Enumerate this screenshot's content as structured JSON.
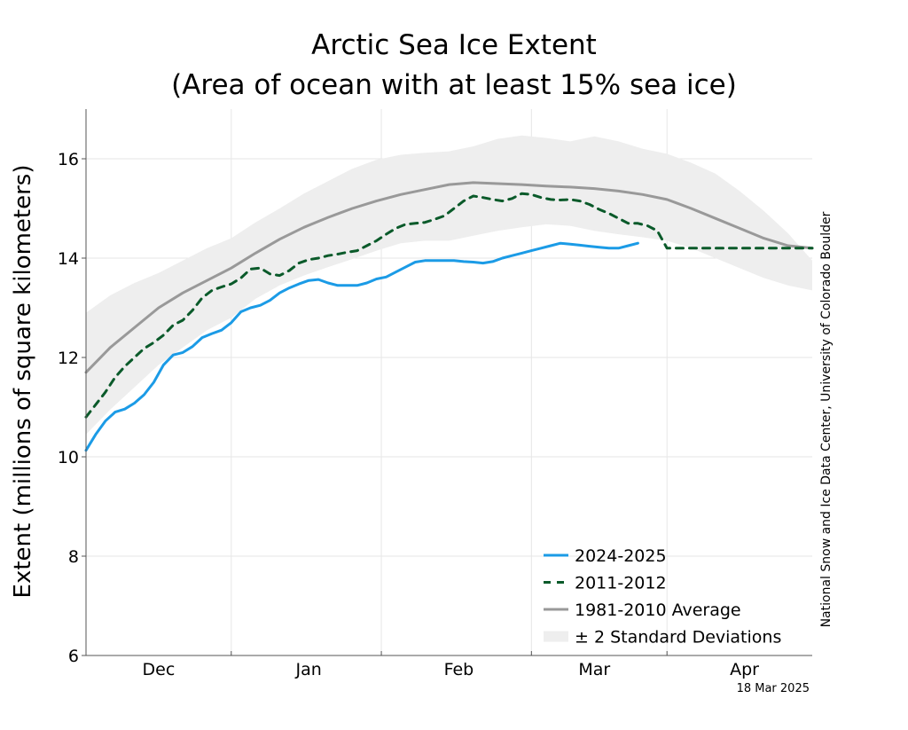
{
  "chart_data": {
    "type": "line",
    "title": [
      "Arctic Sea Ice Extent",
      "(Area of ocean with at least 15% sea ice)"
    ],
    "xlabel": "",
    "ylabel": "Extent (millions of square kilometers)",
    "ylim": [
      6,
      17
    ],
    "yticks": [
      6,
      8,
      10,
      12,
      14,
      16
    ],
    "x_tick_labels": [
      "Dec",
      "Jan",
      "Feb",
      "Mar",
      "Apr"
    ],
    "x_label_days": [
      15,
      46,
      77,
      105,
      136
    ],
    "x_separator_days": [
      30,
      61,
      92,
      120
    ],
    "xlim_days": [
      0,
      150
    ],
    "credit": "National Snow and Ice Data Center, University of Colorado Boulder",
    "date_stamp": "18 Mar 2025",
    "legend_position": "bottom-right",
    "grid": true,
    "colors": {
      "series_2024_2025": "#1b9be6",
      "series_2011_2012": "#0a5a2a",
      "average": "#999999",
      "std_band": "#eeeeee"
    },
    "band": {
      "name": "± 2 Standard Deviations",
      "x": [
        0,
        5,
        10,
        15,
        20,
        25,
        30,
        35,
        40,
        45,
        50,
        55,
        60,
        65,
        70,
        75,
        80,
        85,
        90,
        95,
        100,
        105,
        110,
        115,
        120,
        125,
        130,
        135,
        140,
        145,
        150
      ],
      "upper": [
        12.9,
        13.25,
        13.5,
        13.7,
        13.95,
        14.2,
        14.4,
        14.72,
        15.0,
        15.3,
        15.55,
        15.8,
        15.98,
        16.08,
        16.12,
        16.15,
        16.25,
        16.4,
        16.47,
        16.42,
        16.35,
        16.45,
        16.35,
        16.2,
        16.1,
        15.92,
        15.7,
        15.35,
        14.95,
        14.5,
        13.95
      ],
      "lower": [
        10.45,
        10.95,
        11.4,
        11.85,
        12.2,
        12.55,
        12.8,
        13.18,
        13.45,
        13.65,
        13.82,
        13.98,
        14.15,
        14.3,
        14.35,
        14.35,
        14.45,
        14.55,
        14.62,
        14.68,
        14.65,
        14.55,
        14.48,
        14.42,
        14.35,
        14.2,
        14.0,
        13.8,
        13.6,
        13.45,
        13.35
      ]
    },
    "series": [
      {
        "name": "2024-2025",
        "x": [
          0,
          2,
          4,
          6,
          8,
          10,
          12,
          14,
          16,
          18,
          20,
          22,
          24,
          26,
          28,
          30,
          32,
          34,
          36,
          38,
          40,
          42,
          44,
          46,
          48,
          50,
          52,
          54,
          56,
          58,
          60,
          62,
          64,
          66,
          68,
          70,
          72,
          74,
          76,
          78,
          80,
          82,
          84,
          86,
          88,
          90,
          92,
          94,
          96,
          98,
          100,
          102,
          104,
          106,
          108,
          110,
          112,
          114
        ],
        "y": [
          10.13,
          10.45,
          10.72,
          10.9,
          10.96,
          11.08,
          11.25,
          11.5,
          11.85,
          12.05,
          12.1,
          12.22,
          12.4,
          12.48,
          12.55,
          12.7,
          12.92,
          13.0,
          13.05,
          13.15,
          13.3,
          13.4,
          13.48,
          13.55,
          13.57,
          13.5,
          13.45,
          13.45,
          13.45,
          13.5,
          13.58,
          13.62,
          13.72,
          13.82,
          13.92,
          13.95,
          13.95,
          13.95,
          13.95,
          13.93,
          13.92,
          13.9,
          13.93,
          14.0,
          14.05,
          14.1,
          14.15,
          14.2,
          14.25,
          14.3,
          14.28,
          14.26,
          14.24,
          14.22,
          14.2,
          14.2,
          14.25,
          14.3
        ]
      },
      {
        "name": "2011-2012",
        "x": [
          0,
          2,
          4,
          6,
          8,
          10,
          12,
          14,
          16,
          18,
          20,
          22,
          24,
          26,
          28,
          30,
          32,
          34,
          36,
          38,
          40,
          42,
          44,
          46,
          48,
          50,
          52,
          54,
          56,
          58,
          60,
          62,
          64,
          66,
          68,
          70,
          72,
          74,
          76,
          78,
          80,
          82,
          84,
          86,
          88,
          90,
          92,
          94,
          96,
          98,
          100,
          102,
          104,
          106,
          108,
          110,
          112,
          114,
          116,
          118,
          120,
          122,
          124,
          126,
          128,
          130,
          132,
          134,
          136,
          138,
          140,
          142,
          144,
          146,
          148,
          150
        ],
        "y": [
          10.8,
          11.05,
          11.3,
          11.6,
          11.82,
          12.0,
          12.18,
          12.3,
          12.45,
          12.65,
          12.75,
          12.95,
          13.2,
          13.35,
          13.42,
          13.48,
          13.6,
          13.78,
          13.8,
          13.68,
          13.65,
          13.75,
          13.9,
          13.97,
          14.0,
          14.05,
          14.08,
          14.12,
          14.15,
          14.25,
          14.35,
          14.48,
          14.6,
          14.68,
          14.7,
          14.72,
          14.78,
          14.85,
          15.0,
          15.15,
          15.25,
          15.22,
          15.18,
          15.15,
          15.2,
          15.3,
          15.28,
          15.22,
          15.18,
          15.17,
          15.18,
          15.15,
          15.08,
          14.98,
          14.9,
          14.8,
          14.7,
          14.7,
          14.65,
          14.55,
          14.2,
          14.2,
          14.2,
          14.2,
          14.2,
          14.2,
          14.2,
          14.2,
          14.2,
          14.2,
          14.2,
          14.2,
          14.2,
          14.2,
          14.2,
          14.2
        ]
      },
      {
        "name": "1981-2010 Average",
        "x": [
          0,
          5,
          10,
          15,
          20,
          25,
          30,
          35,
          40,
          45,
          50,
          55,
          60,
          65,
          70,
          75,
          80,
          85,
          90,
          95,
          100,
          105,
          110,
          115,
          120,
          125,
          130,
          135,
          140,
          145,
          150
        ],
        "y": [
          11.7,
          12.2,
          12.6,
          13.0,
          13.3,
          13.55,
          13.8,
          14.1,
          14.38,
          14.62,
          14.82,
          15.0,
          15.15,
          15.28,
          15.38,
          15.48,
          15.52,
          15.5,
          15.48,
          15.45,
          15.43,
          15.4,
          15.35,
          15.28,
          15.18,
          15.0,
          14.8,
          14.6,
          14.4,
          14.25,
          14.2
        ]
      }
    ]
  }
}
